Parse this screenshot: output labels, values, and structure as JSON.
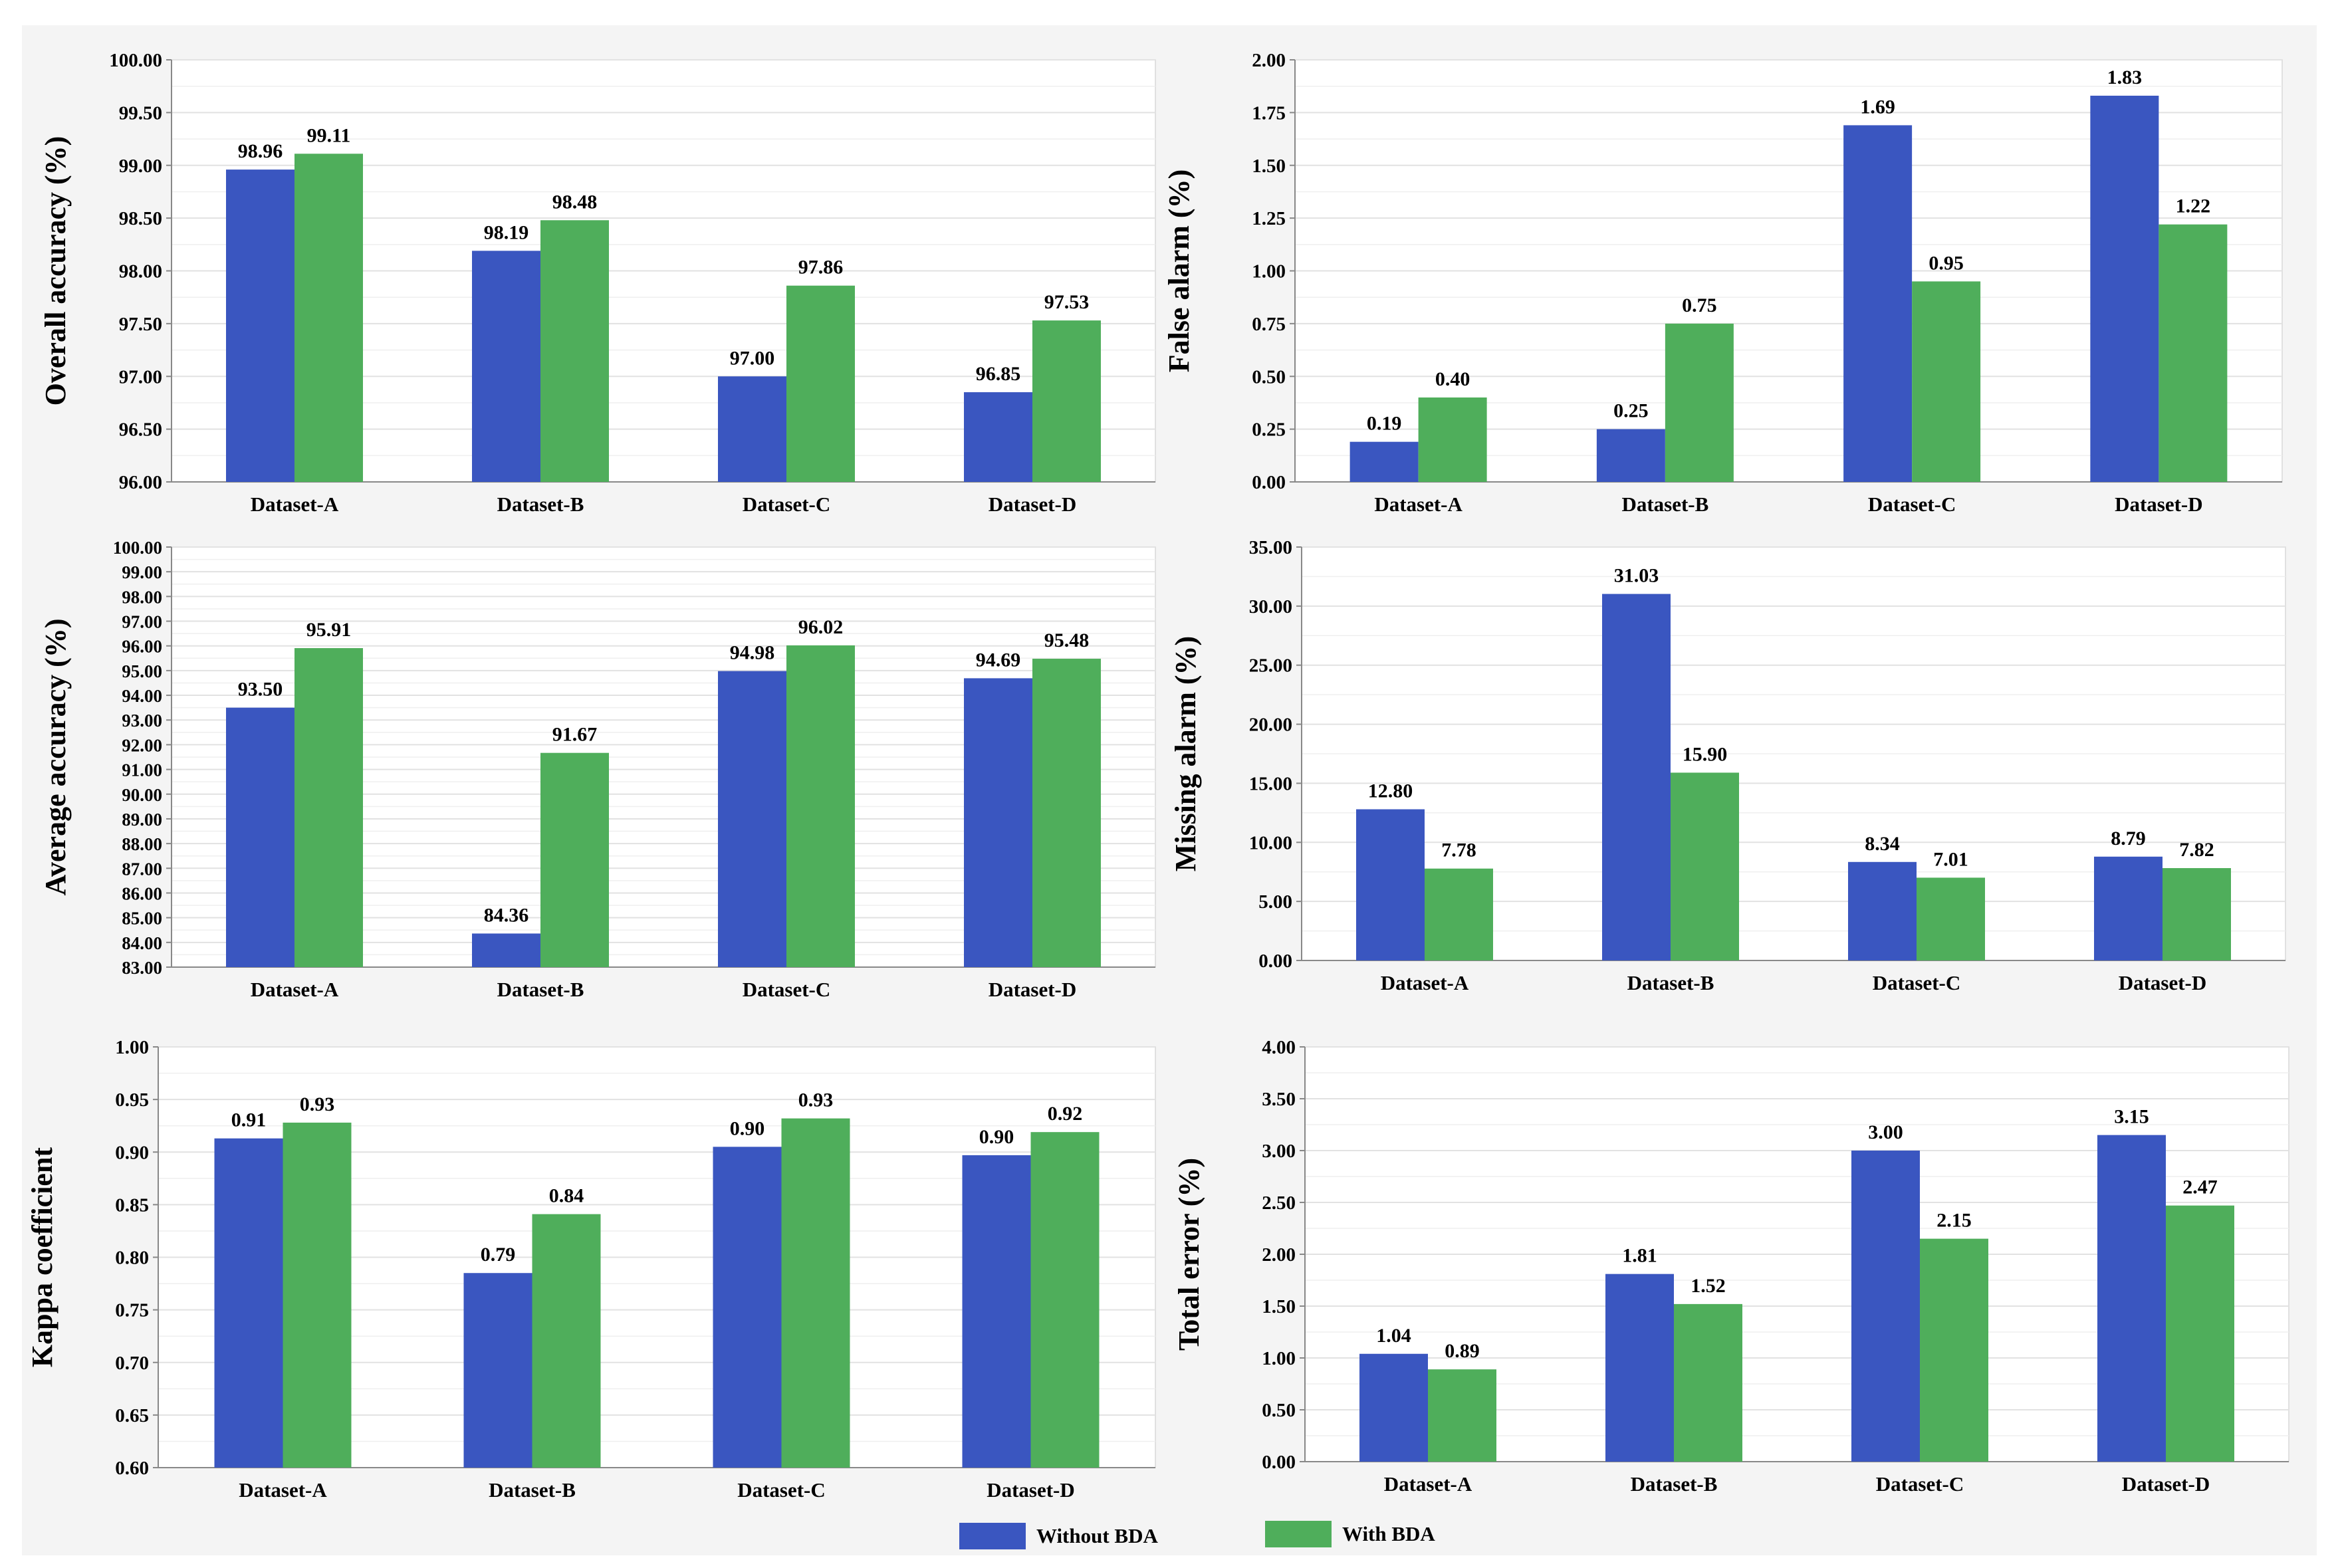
{
  "colors": {
    "without": "#3a56c0",
    "with": "#4fae5b",
    "grid": "#e2e2e2",
    "axis": "#888888"
  },
  "legend": {
    "without_label": "Without BDA",
    "with_label": "With BDA"
  },
  "chart_data": [
    {
      "type": "bar",
      "ylabel": "Overall accuracy (%)",
      "categories": [
        "Dataset-A",
        "Dataset-B",
        "Dataset-C",
        "Dataset-D"
      ],
      "ylim": [
        96.0,
        100.0
      ],
      "yticks": [
        96.0,
        96.5,
        97.0,
        97.5,
        98.0,
        98.5,
        99.0,
        99.5,
        100.0
      ],
      "series": [
        {
          "name": "Without BDA",
          "values": [
            98.96,
            98.19,
            97.0,
            96.85
          ]
        },
        {
          "name": "With BDA",
          "values": [
            99.11,
            98.48,
            97.86,
            97.53
          ]
        }
      ],
      "grid": true
    },
    {
      "type": "bar",
      "ylabel": "False alarm (%)",
      "categories": [
        "Dataset-A",
        "Dataset-B",
        "Dataset-C",
        "Dataset-D"
      ],
      "ylim": [
        0.0,
        2.0
      ],
      "yticks": [
        0.0,
        0.25,
        0.5,
        0.75,
        1.0,
        1.25,
        1.5,
        1.75,
        2.0
      ],
      "series": [
        {
          "name": "Without BDA",
          "values": [
            0.19,
            0.25,
            1.69,
            1.83
          ]
        },
        {
          "name": "With BDA",
          "values": [
            0.4,
            0.75,
            0.95,
            1.22
          ]
        }
      ],
      "grid": true
    },
    {
      "type": "bar",
      "ylabel": "Average accuracy (%)",
      "categories": [
        "Dataset-A",
        "Dataset-B",
        "Dataset-C",
        "Dataset-D"
      ],
      "ylim": [
        83.0,
        100.0
      ],
      "yticks": [
        83.0,
        84.0,
        85.0,
        86.0,
        87.0,
        88.0,
        89.0,
        90.0,
        91.0,
        92.0,
        93.0,
        94.0,
        95.0,
        96.0,
        97.0,
        98.0,
        99.0,
        100.0
      ],
      "series": [
        {
          "name": "Without BDA",
          "values": [
            93.5,
            84.36,
            94.98,
            94.69
          ]
        },
        {
          "name": "With BDA",
          "values": [
            95.91,
            91.67,
            96.02,
            95.48
          ]
        }
      ],
      "grid": true
    },
    {
      "type": "bar",
      "ylabel": "Missing alarm (%)",
      "categories": [
        "Dataset-A",
        "Dataset-B",
        "Dataset-C",
        "Dataset-D"
      ],
      "ylim": [
        0.0,
        35.0
      ],
      "yticks": [
        0.0,
        5.0,
        10.0,
        15.0,
        20.0,
        25.0,
        30.0,
        35.0
      ],
      "series": [
        {
          "name": "Without BDA",
          "values": [
            12.8,
            31.03,
            8.34,
            8.79
          ]
        },
        {
          "name": "With BDA",
          "values": [
            7.78,
            15.9,
            7.01,
            7.82
          ]
        }
      ],
      "grid": true
    },
    {
      "type": "bar",
      "ylabel": "Kappa coefficient",
      "categories": [
        "Dataset-A",
        "Dataset-B",
        "Dataset-C",
        "Dataset-D"
      ],
      "ylim": [
        0.6,
        1.0
      ],
      "yticks": [
        0.6,
        0.65,
        0.7,
        0.75,
        0.8,
        0.85,
        0.9,
        0.95,
        1.0
      ],
      "series": [
        {
          "name": "Without BDA",
          "values": [
            0.913,
            0.785,
            0.905,
            0.897
          ]
        },
        {
          "name": "With BDA",
          "values": [
            0.928,
            0.841,
            0.932,
            0.919
          ]
        }
      ],
      "data_labels": [
        [
          "0.91",
          "0.79",
          "0.90",
          "0.90"
        ],
        [
          "0.93",
          "0.84",
          "0.93",
          "0.92"
        ]
      ],
      "grid": true
    },
    {
      "type": "bar",
      "ylabel": "Total error (%)",
      "categories": [
        "Dataset-A",
        "Dataset-B",
        "Dataset-C",
        "Dataset-D"
      ],
      "ylim": [
        0.0,
        4.0
      ],
      "yticks": [
        0.0,
        0.5,
        1.0,
        1.5,
        2.0,
        2.5,
        3.0,
        3.5,
        4.0
      ],
      "series": [
        {
          "name": "Without BDA",
          "values": [
            1.04,
            1.81,
            3.0,
            3.15
          ]
        },
        {
          "name": "With BDA",
          "values": [
            0.89,
            1.52,
            2.15,
            2.47
          ]
        }
      ],
      "grid": true
    }
  ]
}
